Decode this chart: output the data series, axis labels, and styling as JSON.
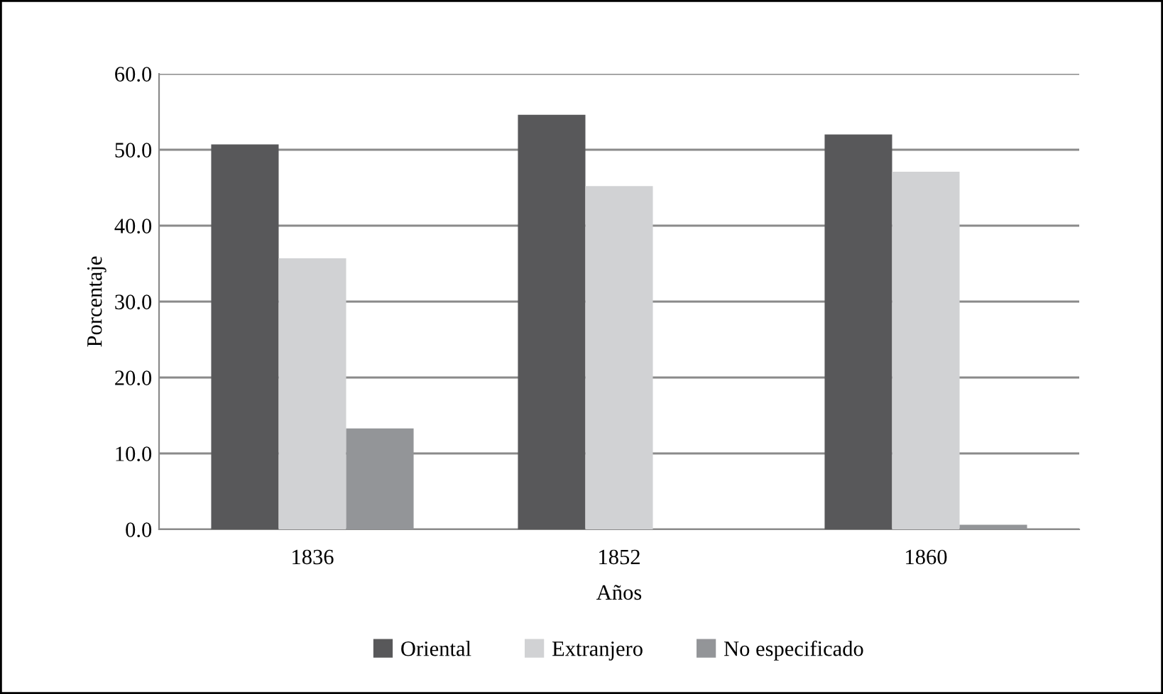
{
  "chart_data": {
    "type": "bar",
    "xlabel": "Años",
    "ylabel": "Porcentaje",
    "categories": [
      "1836",
      "1852",
      "1860"
    ],
    "series": [
      {
        "name": "Oriental",
        "color": "#58585a",
        "values": [
          50.7,
          54.6,
          52.0
        ]
      },
      {
        "name": "Extranjero",
        "color": "#d1d2d4",
        "values": [
          35.7,
          45.2,
          47.1
        ]
      },
      {
        "name": "No especificado",
        "color": "#939598",
        "values": [
          13.3,
          0,
          0.6
        ]
      }
    ],
    "ylim": [
      0,
      60
    ],
    "yticks": [
      {
        "value": 0,
        "label": "0.0"
      },
      {
        "value": 10,
        "label": "10.0"
      },
      {
        "value": 20,
        "label": "20.0"
      },
      {
        "value": 30,
        "label": "30.0"
      },
      {
        "value": 40,
        "label": "40.0"
      },
      {
        "value": 50,
        "label": "50.0"
      },
      {
        "value": 60,
        "label": "60.0"
      }
    ],
    "grid": "y",
    "legend": "bottom"
  }
}
